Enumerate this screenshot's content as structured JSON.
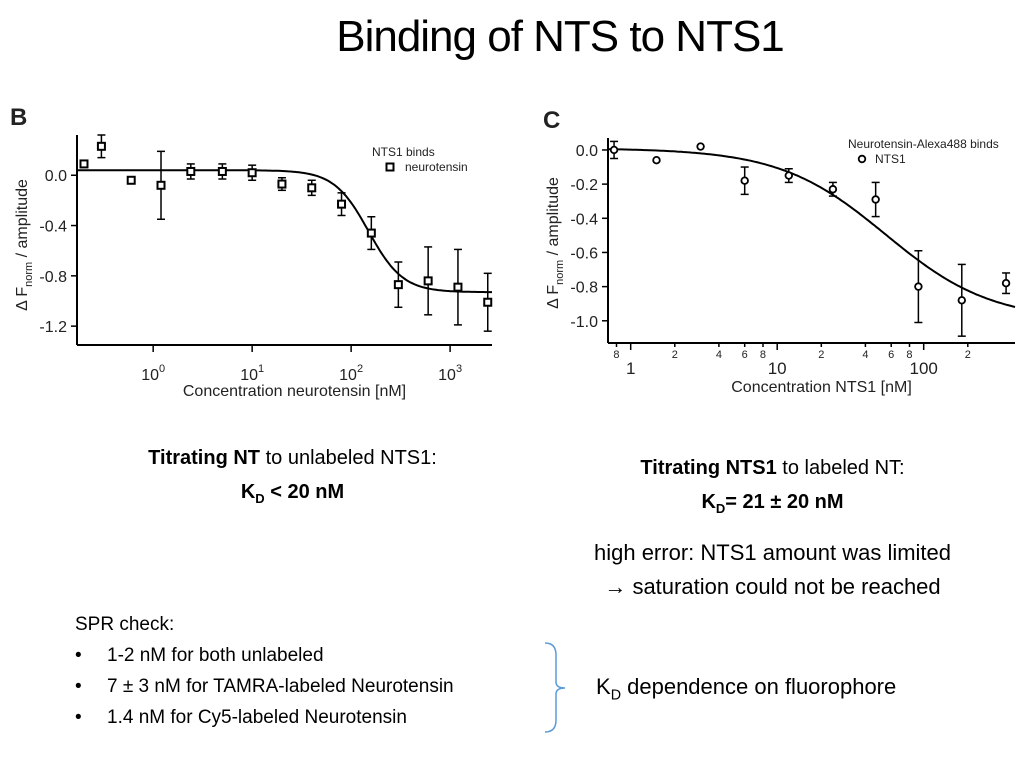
{
  "title": "Binding of NTS to NTS1",
  "chart_data": [
    {
      "type": "scatter",
      "panel": "B",
      "x": [
        0.2,
        0.3,
        0.6,
        1.2,
        2.4,
        5,
        10,
        20,
        40,
        80,
        160,
        300,
        600,
        1200,
        2400
      ],
      "xlog": true,
      "xlim": [
        0.17,
        2650
      ],
      "xticks": [
        {
          "value": 1,
          "label": "10",
          "exponent": "0"
        },
        {
          "value": 10,
          "label": "10",
          "exponent": "1"
        },
        {
          "value": 100,
          "label": "10",
          "exponent": "2"
        },
        {
          "value": 1000,
          "label": "10",
          "exponent": "3"
        }
      ],
      "ylim": [
        -1.35,
        0.32
      ],
      "yticks": [
        {
          "value": 0,
          "label": "0.0"
        },
        -0.4,
        -0.8,
        -1.2
      ],
      "xlabel": "Concentration neurotensin [nM]",
      "ylabel": {
        "symbol": "Δ F",
        "sub": "norm",
        "rest": " / amplitude"
      },
      "legend_title": "NTS1 binds",
      "series": [
        {
          "name": "neurotensin",
          "marker": "square",
          "color": "#000000",
          "values": [
            0.09,
            0.23,
            -0.04,
            -0.08,
            0.03,
            0.03,
            0.02,
            -0.07,
            -0.1,
            -0.23,
            -0.46,
            -0.87,
            -0.84,
            -0.89,
            -1.01
          ],
          "errors": [
            null,
            0.09,
            null,
            0.27,
            0.06,
            0.06,
            0.06,
            0.05,
            0.06,
            0.09,
            0.13,
            0.18,
            0.27,
            0.3,
            0.23
          ]
        }
      ],
      "fit": {
        "top": 0.04,
        "bottom": -0.93,
        "ec50": 150,
        "hill": 2.5
      }
    },
    {
      "type": "scatter",
      "panel": "C",
      "x": [
        0.77,
        1.5,
        3,
        6,
        12,
        24,
        47,
        92,
        182,
        365
      ],
      "xlog": true,
      "xlim": [
        0.7,
        420
      ],
      "xticks": [
        {
          "value": 0.8,
          "label": "8"
        },
        1,
        2,
        4,
        6,
        8,
        10,
        {
          "value": 20,
          "label": "2"
        },
        {
          "value": 40,
          "label": "4"
        },
        {
          "value": 60,
          "label": "6"
        },
        {
          "value": 80,
          "label": "8"
        },
        100,
        {
          "value": 200,
          "label": "2"
        }
      ],
      "ylim": [
        -1.13,
        0.07
      ],
      "yticks": [
        {
          "value": 0,
          "label": "0.0"
        },
        -0.2,
        -0.4,
        -0.6,
        -0.8,
        {
          "value": -1,
          "label": "-1.0"
        }
      ],
      "xlabel": "Concentration NTS1 [nM]",
      "ylabel": {
        "symbol": "Δ F",
        "sub": "norm",
        "rest": " / amplitude"
      },
      "legend_title": "Neurotensin-Alexa488 binds",
      "series": [
        {
          "name": "NTS1",
          "marker": "circle",
          "color": "#000000",
          "values": [
            0,
            -0.06,
            0.02,
            -0.18,
            -0.15,
            -0.23,
            -0.29,
            -0.8,
            -0.88,
            -0.78
          ],
          "errors": [
            0.05,
            null,
            null,
            0.08,
            0.04,
            0.04,
            0.1,
            0.21,
            0.21,
            0.06
          ]
        }
      ],
      "fit": {
        "top": 0.01,
        "bottom": -1.0,
        "ec50": 55,
        "hill": 1.2
      }
    }
  ],
  "caption_b": {
    "bold": "Titrating NT",
    "text": " to unlabeled NTS1:",
    "k": "K",
    "sub": "D",
    "value": " < 20 nM"
  },
  "caption_c": {
    "bold": "Titrating NTS1",
    "text": " to labeled NT:",
    "k": "K",
    "sub": "D",
    "value": "= 21 ± 20 nM"
  },
  "note": [
    "high error: NTS1 amount was limited",
    "→ saturation could not be reached"
  ],
  "spr": {
    "heading": "SPR check:",
    "items": [
      "1-2 nM for both unlabeled",
      "7 ± 3 nM for TAMRA-labeled Neurotensin",
      "1.4 nM for Cy5-labeled Neurotensin"
    ]
  },
  "conclusion": {
    "k": "K",
    "sub": "D",
    "text": " dependence on fluorophore"
  }
}
